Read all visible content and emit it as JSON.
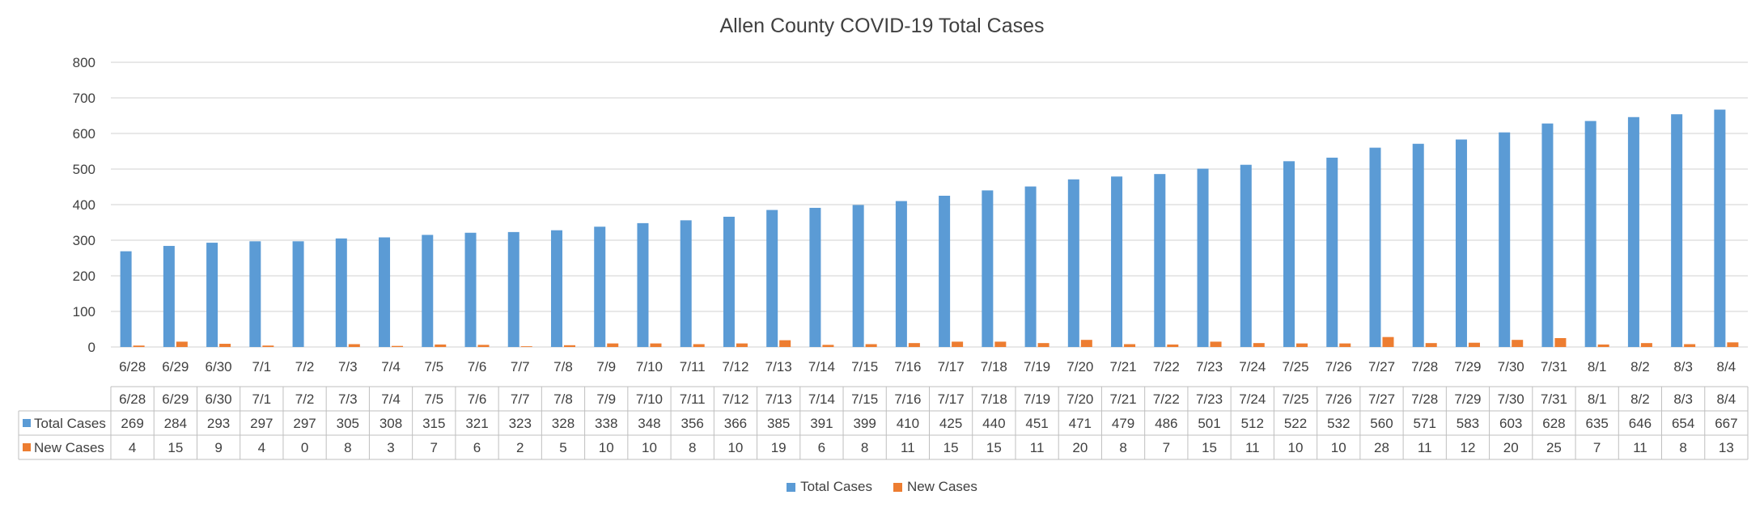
{
  "chart_data": {
    "type": "bar",
    "title": "Allen County COVID-19 Total Cases",
    "xlabel": "",
    "ylabel": "",
    "ylim": [
      0,
      800
    ],
    "yticks": [
      0,
      100,
      200,
      300,
      400,
      500,
      600,
      700,
      800
    ],
    "grid": true,
    "legend_position": "bottom",
    "data_table": true,
    "categories": [
      "6/28",
      "6/29",
      "6/30",
      "7/1",
      "7/2",
      "7/3",
      "7/4",
      "7/5",
      "7/6",
      "7/7",
      "7/8",
      "7/9",
      "7/10",
      "7/11",
      "7/12",
      "7/13",
      "7/14",
      "7/15",
      "7/16",
      "7/17",
      "7/18",
      "7/19",
      "7/20",
      "7/21",
      "7/22",
      "7/23",
      "7/24",
      "7/25",
      "7/26",
      "7/27",
      "7/28",
      "7/29",
      "7/30",
      "7/31",
      "8/1",
      "8/2",
      "8/3",
      "8/4"
    ],
    "series": [
      {
        "name": "Total Cases",
        "color": "#5B9BD5",
        "values": [
          269,
          284,
          293,
          297,
          297,
          305,
          308,
          315,
          321,
          323,
          328,
          338,
          348,
          356,
          366,
          385,
          391,
          399,
          410,
          425,
          440,
          451,
          471,
          479,
          486,
          501,
          512,
          522,
          532,
          560,
          571,
          583,
          603,
          628,
          635,
          646,
          654,
          667
        ]
      },
      {
        "name": "New Cases",
        "color": "#ED7D31",
        "values": [
          4,
          15,
          9,
          4,
          0,
          8,
          3,
          7,
          6,
          2,
          5,
          10,
          10,
          8,
          10,
          19,
          6,
          8,
          11,
          15,
          15,
          11,
          20,
          8,
          7,
          15,
          11,
          10,
          10,
          28,
          11,
          12,
          20,
          25,
          7,
          11,
          8,
          13
        ]
      }
    ]
  },
  "colors": {
    "grid": "#d9d9d9",
    "text": "#404040",
    "table_border": "#bfbfbf"
  }
}
